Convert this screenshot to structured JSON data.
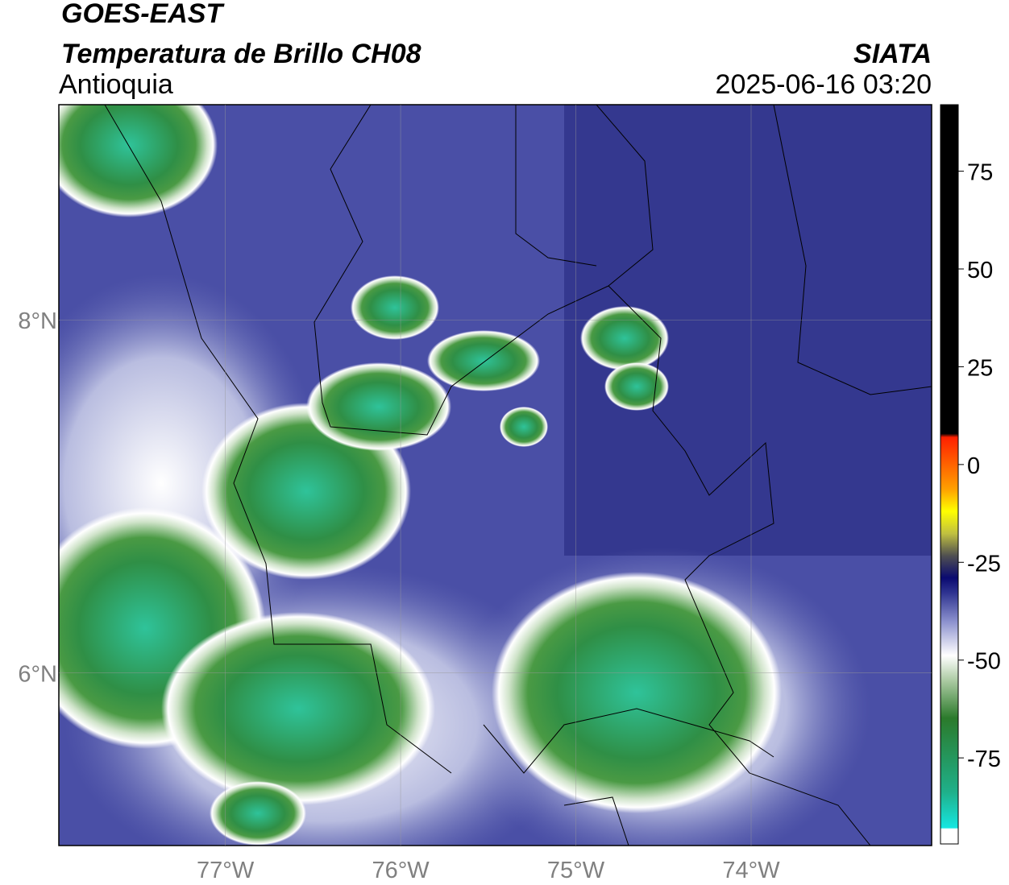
{
  "title": "GOES-EAST",
  "subtitle": "Temperatura de Brillo CH08",
  "region": "Antioquia",
  "source": "SIATA",
  "timestamp": "2025-06-16 03:20",
  "map": {
    "xlim": [
      -77.95,
      -72.97
    ],
    "ylim": [
      5.02,
      9.22
    ],
    "xticks": [
      {
        "value": -77,
        "label": "77°W"
      },
      {
        "value": -76,
        "label": "76°W"
      },
      {
        "value": -75,
        "label": "75°W"
      },
      {
        "value": -74,
        "label": "74°W"
      }
    ],
    "yticks": [
      {
        "value": 8,
        "label": "8°N"
      },
      {
        "value": 6,
        "label": "6°N"
      }
    ],
    "grid": true
  },
  "colorbar": {
    "lim": [
      -97,
      92
    ],
    "ticks": [
      75,
      50,
      25,
      0,
      -25,
      -50,
      -75
    ]
  }
}
